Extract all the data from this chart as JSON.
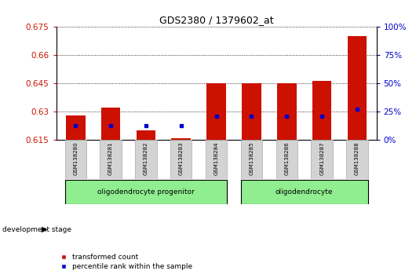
{
  "title": "GDS2380 / 1379602_at",
  "samples": [
    "GSM138280",
    "GSM138281",
    "GSM138282",
    "GSM138283",
    "GSM138284",
    "GSM138285",
    "GSM138286",
    "GSM138287",
    "GSM138288"
  ],
  "transformed_count": [
    0.628,
    0.632,
    0.62,
    0.616,
    0.645,
    0.645,
    0.645,
    0.646,
    0.67
  ],
  "percentile_rank": [
    0.6225,
    0.6225,
    0.6225,
    0.6225,
    0.6275,
    0.6275,
    0.6275,
    0.6275,
    0.631
  ],
  "baseline": 0.615,
  "ylim_min": 0.615,
  "ylim_max": 0.675,
  "yticks": [
    0.615,
    0.63,
    0.645,
    0.66,
    0.675
  ],
  "ytick_labels": [
    "0.615",
    "0.63",
    "0.645",
    "0.66",
    "0.675"
  ],
  "y2ticks_pct": [
    0,
    25,
    50,
    75,
    100
  ],
  "bar_color": "#CC1100",
  "dot_color": "#0000CC",
  "groups": [
    {
      "label": "oligodendrocyte progenitor",
      "indices": [
        0,
        1,
        2,
        3,
        4
      ],
      "color": "#90EE90"
    },
    {
      "label": "oligodendrocyte",
      "indices": [
        5,
        6,
        7,
        8
      ],
      "color": "#90EE90"
    }
  ],
  "legend_red": "transformed count",
  "legend_blue": "percentile rank within the sample",
  "dev_stage_label": "development stage",
  "xlabel_bg": "#D3D3D3",
  "bar_width": 0.55
}
